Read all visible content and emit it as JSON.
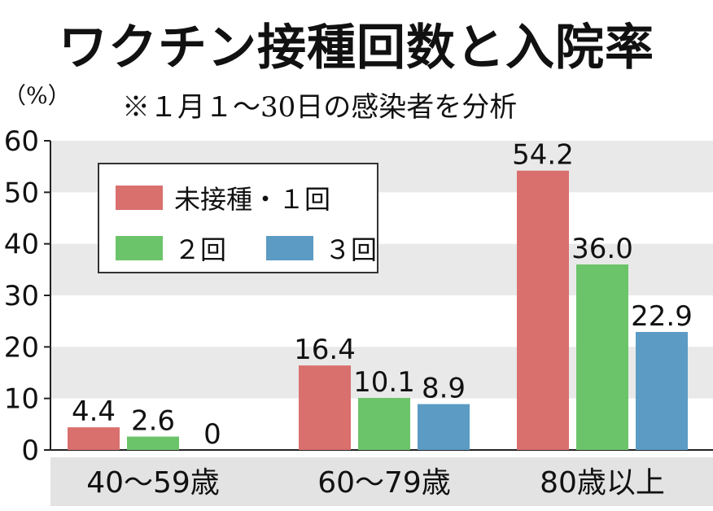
{
  "title": "ワクチン接種回数と入院率",
  "subtitle": "※１月１～30日の感染者を分析",
  "chart_data": {
    "type": "bar",
    "title": "ワクチン接種回数と入院率",
    "subtitle": "※１月１～30日の感染者を分析",
    "ylabel": "（%）",
    "ylim": [
      0,
      60
    ],
    "yticks": [
      "0",
      "10",
      "20",
      "30",
      "40",
      "50",
      "60"
    ],
    "grid": true,
    "legend_position": "top-left",
    "categories": [
      "40〜59歳",
      "60〜79歳",
      "80歳以上"
    ],
    "series": [
      {
        "name": "未接種・１回",
        "color": "#d9706e",
        "values": [
          4.4,
          16.4,
          54.2
        ],
        "labels": [
          "4.4",
          "16.4",
          "54.2"
        ]
      },
      {
        "name": "２回",
        "color": "#6cc46a",
        "values": [
          2.6,
          10.1,
          36.0
        ],
        "labels": [
          "2.6",
          "10.1",
          "36.0"
        ]
      },
      {
        "name": "３回",
        "color": "#5b9bc4",
        "values": [
          0,
          8.9,
          22.9
        ],
        "labels": [
          "0",
          "8.9",
          "22.9"
        ]
      }
    ]
  }
}
